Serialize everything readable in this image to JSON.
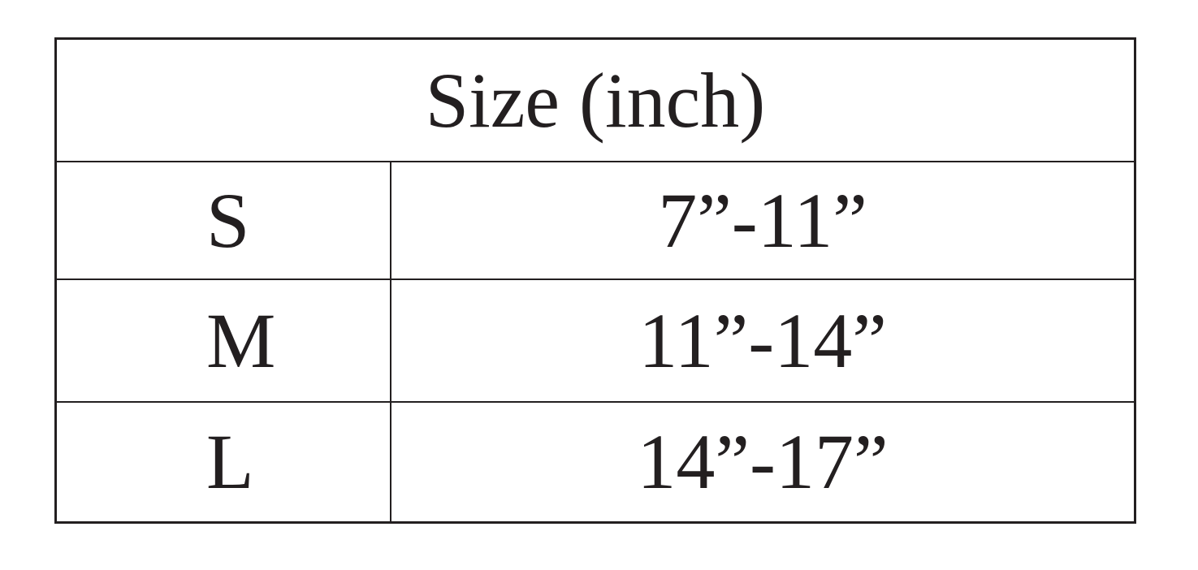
{
  "table": {
    "header": "Size (inch)",
    "rows": [
      {
        "size": "S",
        "range": "7”-11”"
      },
      {
        "size": "M",
        "range": "11”-14”"
      },
      {
        "size": "L",
        "range": "14”-17”"
      }
    ]
  }
}
